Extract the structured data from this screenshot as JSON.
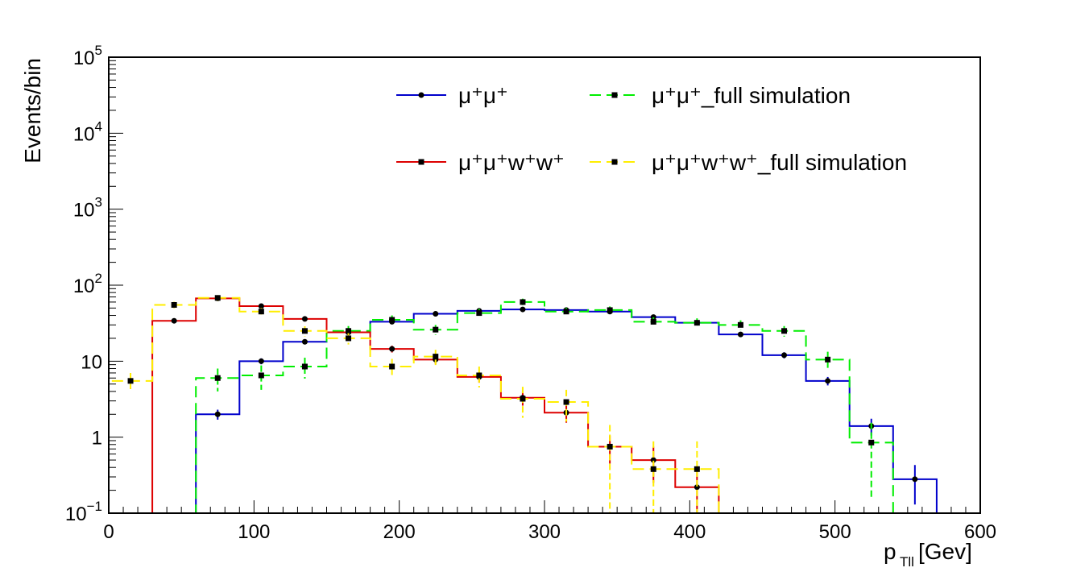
{
  "chart_data": {
    "type": "histogram",
    "xlabel": "p",
    "xlabel_sub": "Tll",
    "xlabel_unit": "[Gev]",
    "ylabel": "Events/bin",
    "xlim": [
      0,
      600
    ],
    "ylim": [
      0.1,
      100000
    ],
    "yscale": "log",
    "x_ticks": [
      {
        "value": 0,
        "label": "0"
      },
      {
        "value": 100,
        "label": "100"
      },
      {
        "value": 200,
        "label": "200"
      },
      {
        "value": 300,
        "label": "300"
      },
      {
        "value": 400,
        "label": "400"
      },
      {
        "value": 500,
        "label": "500"
      },
      {
        "value": 600,
        "label": "600"
      }
    ],
    "y_ticks": [
      {
        "value": 0.1,
        "base": "10",
        "exp": "−1"
      },
      {
        "value": 1,
        "base": "1",
        "exp": ""
      },
      {
        "value": 10,
        "base": "10",
        "exp": ""
      },
      {
        "value": 100,
        "base": "10",
        "exp": "2"
      },
      {
        "value": 1000,
        "base": "10",
        "exp": "3"
      },
      {
        "value": 10000,
        "base": "10",
        "exp": "4"
      },
      {
        "value": 100000,
        "base": "10",
        "exp": "5"
      }
    ],
    "bin_width": 30,
    "bin_edges": [
      0,
      30,
      60,
      90,
      120,
      150,
      180,
      210,
      240,
      270,
      300,
      330,
      360,
      390,
      420,
      450,
      480,
      510,
      540,
      570,
      600
    ],
    "series": [
      {
        "name": "μ⁺μ⁺",
        "color": "#0000cc",
        "dashed": false,
        "values": [
          0.1,
          0.1,
          2,
          10,
          18,
          24,
          33,
          42,
          46,
          48,
          47,
          45,
          38,
          32,
          22.5,
          12,
          5.5,
          1.4,
          0.28,
          0.1
        ],
        "errors": [
          0,
          0,
          0.3,
          0.9,
          1.2,
          1.4,
          1.7,
          2,
          2.1,
          2.2,
          2.2,
          2.1,
          2,
          1.8,
          1.5,
          1.1,
          0.7,
          0.35,
          0.15,
          0
        ]
      },
      {
        "name": "μ⁺μ⁺_full simulation",
        "color": "#00ee00",
        "dashed": true,
        "values": [
          0.1,
          0.1,
          6,
          6.5,
          8.5,
          25,
          35,
          26,
          43,
          60,
          45,
          47,
          33,
          32,
          30,
          25,
          10.5,
          0.85,
          0.1,
          0.1
        ],
        "errors": [
          0,
          0,
          2,
          2.3,
          2.6,
          4,
          5,
          4,
          5.5,
          6.5,
          5.5,
          5.5,
          4.8,
          4.6,
          4.5,
          4,
          2.8,
          0.7,
          0,
          0
        ]
      },
      {
        "name": "μ⁺μ⁺w⁺w⁺",
        "color": "#dd0000",
        "dashed": false,
        "values": [
          0.1,
          34,
          67,
          53,
          36,
          24,
          14.5,
          10.5,
          6.2,
          3.3,
          2.1,
          0.75,
          0.5,
          0.22,
          0.1,
          0.1,
          0.1,
          0.1,
          0.1,
          0.1
        ],
        "errors": [
          0,
          2.5,
          3.5,
          3,
          2.5,
          2,
          1.5,
          1.3,
          1,
          0.7,
          0.55,
          0.3,
          0.25,
          0.15,
          0,
          0,
          0,
          0,
          0,
          0
        ]
      },
      {
        "name": "μ⁺μ⁺w⁺w⁺_full simulation",
        "color": "#ffee00",
        "dashed": true,
        "values": [
          5.5,
          55,
          68,
          45,
          25,
          20,
          8.5,
          11.5,
          6.5,
          3.2,
          2.9,
          0.75,
          0.38,
          0.38,
          0.1,
          0.1,
          0.1,
          0.1,
          0.1,
          0.1
        ],
        "errors": [
          1.5,
          5.5,
          6,
          5,
          3.8,
          3.4,
          2.2,
          2.6,
          2,
          1.4,
          1.3,
          0.7,
          0.5,
          0.5,
          0,
          0,
          0,
          0,
          0,
          0
        ]
      }
    ],
    "legend": [
      {
        "label": "μ⁺μ⁺",
        "color": "#0000cc",
        "dashed": false
      },
      {
        "label": "μ⁺μ⁺_full simulation",
        "color": "#00ee00",
        "dashed": true
      },
      {
        "label": "μ⁺μ⁺w⁺w⁺",
        "color": "#dd0000",
        "dashed": false
      },
      {
        "label": "μ⁺μ⁺w⁺w⁺_full simulation",
        "color": "#ffee00",
        "dashed": true
      }
    ],
    "legend_position": "top-center"
  }
}
